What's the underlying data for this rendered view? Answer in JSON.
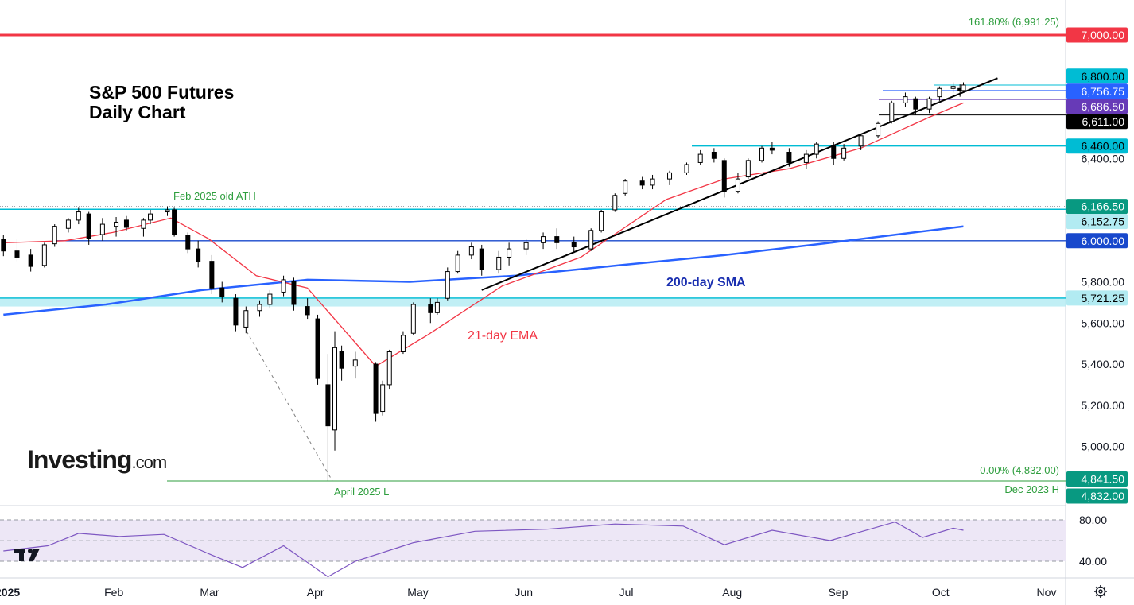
{
  "chart_title": {
    "line1": "S&P 500 Futures",
    "line2": "Daily Chart"
  },
  "watermark": {
    "brand": "Investing",
    "suffix": ".com"
  },
  "annotations": {
    "fib_top": "161.80% (6,991.25)",
    "fib_bottom": "0.00% (4,832.00)",
    "feb_ath": "Feb 2025 old ATH",
    "april_low": "April 2025 L",
    "dec_high": "Dec 2023 H",
    "sma_label": "200-day SMA",
    "ema_label": "21-day EMA"
  },
  "price_badges": [
    {
      "price": 7000.0,
      "label": "7,000.00",
      "bg": "#f23645",
      "fg": "#ffffff"
    },
    {
      "price": 6800.0,
      "label": "6,800.00",
      "bg": "#00bcd4",
      "fg": "#000000"
    },
    {
      "price": 6756.75,
      "label": "6,756.75",
      "bg": "#2962ff",
      "fg": "#ffffff"
    },
    {
      "price": 6686.5,
      "label": "6,686.50",
      "bg": "#673ab7",
      "fg": "#ffffff"
    },
    {
      "price": 6611.0,
      "label": "6,611.00",
      "bg": "#000000",
      "fg": "#ffffff"
    },
    {
      "price": 6460.0,
      "label": "6,460.00",
      "bg": "#00bcd4",
      "fg": "#000000"
    },
    {
      "price": 6166.5,
      "label": "6,166.50",
      "bg": "#089981",
      "fg": "#ffffff"
    },
    {
      "price": 6152.75,
      "label": "6,152.75",
      "bg": "#b2ebf2",
      "fg": "#000000"
    },
    {
      "price": 6000.0,
      "label": "6,000.00",
      "bg": "#1848cc",
      "fg": "#ffffff"
    },
    {
      "price": 5721.25,
      "label": "5,721.25",
      "bg": "#b2ebf2",
      "fg": "#000000"
    },
    {
      "price": 4841.5,
      "label": "4,841.50",
      "bg": "#089981",
      "fg": "#ffffff"
    },
    {
      "price": 4832.0,
      "label": "4,832.00",
      "bg": "#089981",
      "fg": "#ffffff"
    }
  ],
  "price_axis_ticks": [
    "6,400.00",
    "5,800.00",
    "5,600.00",
    "5,400.00",
    "5,200.00",
    "5,000.00"
  ],
  "rsi_axis_ticks": [
    "80.00",
    "40.00"
  ],
  "month_labels": [
    "2025",
    "Feb",
    "Mar",
    "Apr",
    "May",
    "Jun",
    "Jul",
    "Aug",
    "Sep",
    "Oct",
    "Nov"
  ],
  "colors": {
    "up": "#ffffff",
    "down": "#000000",
    "ema": "#f23645",
    "sma": "#2962ff",
    "rsi": "#7e57c2",
    "rsi_band": "#ede7f6",
    "support": "#00bcd4",
    "fib": "#2e9e3e"
  },
  "chart_data": {
    "type": "candlestick",
    "title": "S&P 500 Futures Daily Chart",
    "y_range": [
      4700,
      7070
    ],
    "x_range": [
      "2025-01-01",
      "2025-11-01"
    ],
    "ohlc": [
      [
        "2025-01-02",
        6005,
        6030,
        5925,
        5950
      ],
      [
        "2025-01-06",
        5950,
        6010,
        5900,
        5920
      ],
      [
        "2025-01-10",
        5930,
        5960,
        5850,
        5875
      ],
      [
        "2025-01-14",
        5880,
        5990,
        5870,
        5980
      ],
      [
        "2025-01-17",
        5985,
        6080,
        5970,
        6070
      ],
      [
        "2025-01-21",
        6060,
        6110,
        6040,
        6100
      ],
      [
        "2025-01-24",
        6100,
        6160,
        6080,
        6140
      ],
      [
        "2025-01-27",
        6130,
        6140,
        5980,
        6010
      ],
      [
        "2025-01-31",
        6030,
        6110,
        6000,
        6080
      ],
      [
        "2025-02-04",
        6070,
        6115,
        6020,
        6090
      ],
      [
        "2025-02-07",
        6100,
        6120,
        6050,
        6065
      ],
      [
        "2025-02-12",
        6060,
        6110,
        6020,
        6100
      ],
      [
        "2025-02-14",
        6100,
        6150,
        6080,
        6130
      ],
      [
        "2025-02-19",
        6140,
        6166.5,
        6120,
        6150
      ],
      [
        "2025-02-21",
        6150,
        6160,
        6020,
        6030
      ],
      [
        "2025-02-25",
        6025,
        6040,
        5940,
        5960
      ],
      [
        "2025-02-28",
        5960,
        6000,
        5870,
        5900
      ],
      [
        "2025-03-04",
        5900,
        5930,
        5740,
        5770
      ],
      [
        "2025-03-07",
        5770,
        5800,
        5700,
        5730
      ],
      [
        "2025-03-11",
        5720,
        5740,
        5560,
        5590
      ],
      [
        "2025-03-14",
        5580,
        5680,
        5550,
        5660
      ],
      [
        "2025-03-18",
        5660,
        5710,
        5630,
        5690
      ],
      [
        "2025-03-21",
        5690,
        5760,
        5670,
        5740
      ],
      [
        "2025-03-25",
        5750,
        5830,
        5730,
        5810
      ],
      [
        "2025-03-28",
        5800,
        5820,
        5660,
        5690
      ],
      [
        "2025-04-01",
        5680,
        5720,
        5620,
        5640
      ],
      [
        "2025-04-04",
        5620,
        5640,
        5300,
        5330
      ],
      [
        "2025-04-07",
        5300,
        5450,
        4832,
        5100
      ],
      [
        "2025-04-09",
        5080,
        5560,
        4980,
        5480
      ],
      [
        "2025-04-11",
        5460,
        5490,
        5320,
        5380
      ],
      [
        "2025-04-15",
        5390,
        5460,
        5330,
        5420
      ],
      [
        "2025-04-21",
        5400,
        5410,
        5120,
        5160
      ],
      [
        "2025-04-23",
        5170,
        5320,
        5150,
        5300
      ],
      [
        "2025-04-25",
        5300,
        5470,
        5280,
        5460
      ],
      [
        "2025-04-29",
        5460,
        5560,
        5450,
        5540
      ],
      [
        "2025-05-02",
        5550,
        5700,
        5540,
        5690
      ],
      [
        "2025-05-07",
        5690,
        5720,
        5600,
        5650
      ],
      [
        "2025-05-09",
        5650,
        5720,
        5640,
        5700
      ],
      [
        "2025-05-12",
        5720,
        5870,
        5710,
        5850
      ],
      [
        "2025-05-15",
        5850,
        5950,
        5840,
        5930
      ],
      [
        "2025-05-19",
        5930,
        5990,
        5910,
        5970
      ],
      [
        "2025-05-22",
        5960,
        5980,
        5830,
        5860
      ],
      [
        "2025-05-27",
        5860,
        5950,
        5840,
        5920
      ],
      [
        "2025-05-30",
        5920,
        5990,
        5880,
        5960
      ],
      [
        "2025-06-04",
        5960,
        6010,
        5930,
        5990
      ],
      [
        "2025-06-09",
        5990,
        6040,
        5960,
        6020
      ],
      [
        "2025-06-13",
        6020,
        6060,
        5960,
        5990
      ],
      [
        "2025-06-18",
        5990,
        6020,
        5940,
        5970
      ],
      [
        "2025-06-23",
        5960,
        6060,
        5950,
        6050
      ],
      [
        "2025-06-26",
        6050,
        6150,
        6040,
        6140
      ],
      [
        "2025-06-30",
        6150,
        6230,
        6140,
        6220
      ],
      [
        "2025-07-03",
        6230,
        6300,
        6220,
        6290
      ],
      [
        "2025-07-08",
        6290,
        6310,
        6250,
        6270
      ],
      [
        "2025-07-11",
        6270,
        6320,
        6250,
        6300
      ],
      [
        "2025-07-16",
        6300,
        6340,
        6270,
        6330
      ],
      [
        "2025-07-21",
        6330,
        6380,
        6320,
        6370
      ],
      [
        "2025-07-25",
        6380,
        6440,
        6370,
        6420
      ],
      [
        "2025-07-29",
        6430,
        6450,
        6380,
        6400
      ],
      [
        "2025-08-01",
        6390,
        6400,
        6210,
        6240
      ],
      [
        "2025-08-05",
        6240,
        6330,
        6230,
        6300
      ],
      [
        "2025-08-08",
        6310,
        6400,
        6300,
        6390
      ],
      [
        "2025-08-12",
        6390,
        6460,
        6380,
        6450
      ],
      [
        "2025-08-15",
        6450,
        6480,
        6420,
        6440
      ],
      [
        "2025-08-20",
        6430,
        6450,
        6360,
        6380
      ],
      [
        "2025-08-25",
        6380,
        6440,
        6350,
        6420
      ],
      [
        "2025-08-28",
        6420,
        6480,
        6400,
        6470
      ],
      [
        "2025-09-02",
        6460,
        6480,
        6370,
        6400
      ],
      [
        "2025-09-05",
        6400,
        6470,
        6390,
        6450
      ],
      [
        "2025-09-10",
        6460,
        6520,
        6440,
        6510
      ],
      [
        "2025-09-15",
        6510,
        6580,
        6500,
        6570
      ],
      [
        "2025-09-19",
        6580,
        6680,
        6570,
        6670
      ],
      [
        "2025-09-23",
        6670,
        6720,
        6650,
        6700
      ],
      [
        "2025-09-26",
        6690,
        6700,
        6611,
        6640
      ],
      [
        "2025-09-30",
        6640,
        6700,
        6620,
        6690
      ],
      [
        "2025-10-03",
        6700,
        6750,
        6680,
        6740
      ],
      [
        "2025-10-07",
        6740,
        6770,
        6720,
        6750
      ],
      [
        "2025-10-09",
        6740,
        6760,
        6700,
        6730
      ],
      [
        "2025-10-10",
        6730,
        6770,
        6725,
        6756.75
      ]
    ],
    "ema_21": [
      [
        "2025-01-02",
        5990
      ],
      [
        "2025-01-20",
        6000
      ],
      [
        "2025-02-03",
        6040
      ],
      [
        "2025-02-20",
        6110
      ],
      [
        "2025-03-03",
        6010
      ],
      [
        "2025-03-17",
        5830
      ],
      [
        "2025-04-01",
        5770
      ],
      [
        "2025-04-21",
        5390
      ],
      [
        "2025-05-06",
        5540
      ],
      [
        "2025-05-28",
        5780
      ],
      [
        "2025-06-20",
        5920
      ],
      [
        "2025-07-15",
        6200
      ],
      [
        "2025-08-01",
        6300
      ],
      [
        "2025-08-20",
        6350
      ],
      [
        "2025-09-10",
        6450
      ],
      [
        "2025-09-30",
        6600
      ],
      [
        "2025-10-10",
        6670
      ]
    ],
    "sma_200": [
      [
        "2025-01-02",
        5640
      ],
      [
        "2025-02-01",
        5690
      ],
      [
        "2025-03-01",
        5760
      ],
      [
        "2025-04-01",
        5810
      ],
      [
        "2025-05-01",
        5800
      ],
      [
        "2025-06-01",
        5830
      ],
      [
        "2025-07-01",
        5880
      ],
      [
        "2025-08-01",
        5930
      ],
      [
        "2025-09-01",
        5990
      ],
      [
        "2025-10-10",
        6070
      ]
    ],
    "trendline": [
      [
        "2025-05-22",
        5760
      ],
      [
        "2025-10-20",
        6790
      ]
    ],
    "rsi_14": [
      [
        "2025-01-02",
        50
      ],
      [
        "2025-01-15",
        55
      ],
      [
        "2025-01-24",
        67
      ],
      [
        "2025-02-05",
        64
      ],
      [
        "2025-02-18",
        66
      ],
      [
        "2025-03-04",
        46
      ],
      [
        "2025-03-13",
        34
      ],
      [
        "2025-03-25",
        55
      ],
      [
        "2025-04-07",
        25
      ],
      [
        "2025-04-15",
        40
      ],
      [
        "2025-05-02",
        58
      ],
      [
        "2025-05-20",
        69
      ],
      [
        "2025-06-10",
        71
      ],
      [
        "2025-06-30",
        76
      ],
      [
        "2025-07-20",
        74
      ],
      [
        "2025-08-01",
        56
      ],
      [
        "2025-08-15",
        70
      ],
      [
        "2025-09-01",
        60
      ],
      [
        "2025-09-20",
        78
      ],
      [
        "2025-09-28",
        63
      ],
      [
        "2025-10-07",
        72
      ],
      [
        "2025-10-10",
        70
      ]
    ]
  }
}
